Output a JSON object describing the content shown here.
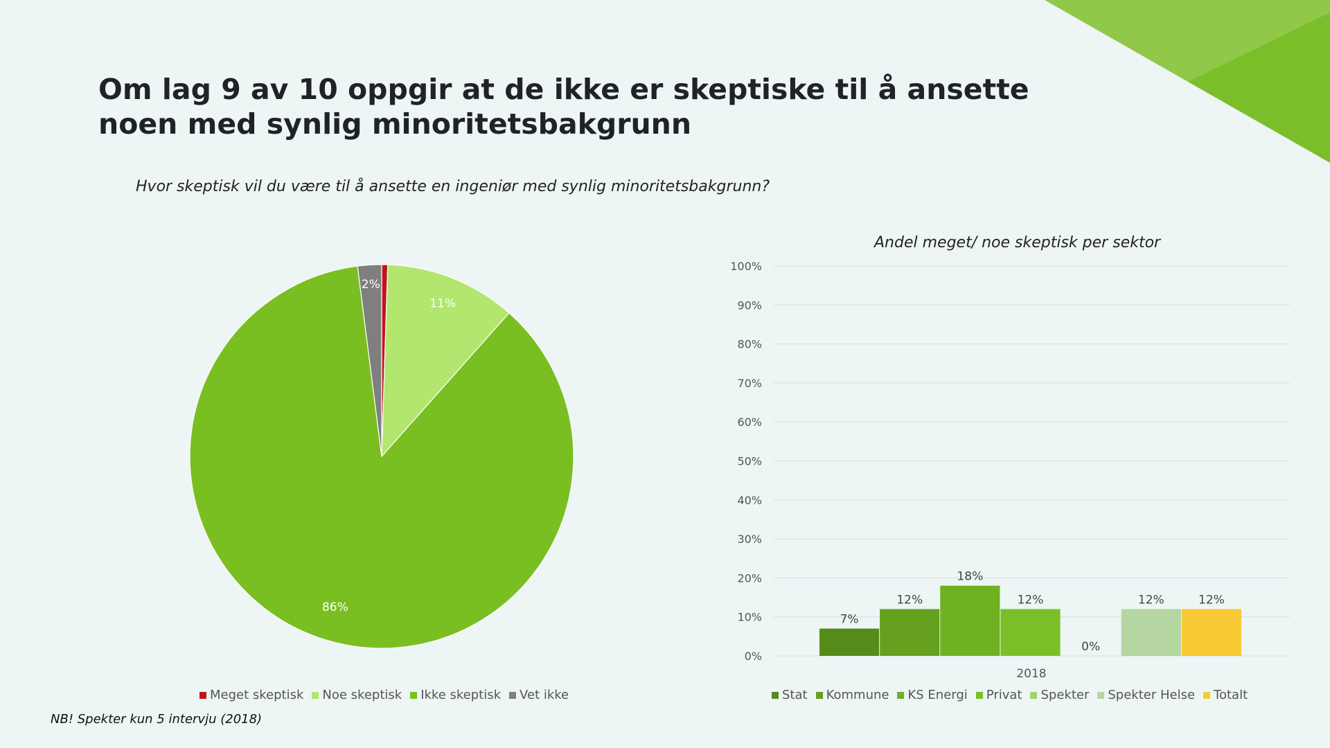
{
  "title": "Om lag 9 av 10 oppgir at de ikke er skeptiske til å ansette noen med synlig minoritetsbakgrunn",
  "question": "Hvor skeptisk vil du være til å ansette en ingeniør med synlig minoritetsbakgrunn?",
  "footnote": "NB! Spekter kun 5 intervju (2018)",
  "decor_colors": [
    "#92c84a",
    "#7abf2a"
  ],
  "chart_data": [
    {
      "type": "pie",
      "title": "",
      "slices": [
        {
          "name": "Meget skeptisk",
          "value": 0.5,
          "label": "",
          "color": "#c0141c"
        },
        {
          "name": "Noe skeptisk",
          "value": 11,
          "label": "11%",
          "color": "#b2e66f"
        },
        {
          "name": "Ikke skeptisk",
          "value": 86,
          "label": "86%",
          "color": "#7abf22"
        },
        {
          "name": "Vet ikke",
          "value": 2,
          "label": "2%",
          "color": "#7f7f7f"
        }
      ],
      "legend_position": "bottom"
    },
    {
      "type": "bar",
      "title": "Andel meget/ noe skeptisk per sektor",
      "categories": [
        "2018"
      ],
      "series": [
        {
          "name": "Stat",
          "values": [
            7
          ],
          "label": "7%",
          "color": "#568b19"
        },
        {
          "name": "Kommune",
          "values": [
            12
          ],
          "label": "12%",
          "color": "#66a01f"
        },
        {
          "name": "KS Energi",
          "values": [
            18
          ],
          "label": "18%",
          "color": "#6eb122"
        },
        {
          "name": "Privat",
          "values": [
            12
          ],
          "label": "12%",
          "color": "#7abf28"
        },
        {
          "name": "Spekter",
          "values": [
            0
          ],
          "label": "0%",
          "color": "#9fd470"
        },
        {
          "name": "Spekter Helse",
          "values": [
            12
          ],
          "label": "12%",
          "color": "#b6d6a1"
        },
        {
          "name": "Totalt",
          "values": [
            12
          ],
          "label": "12%",
          "color": "#f7c934"
        }
      ],
      "ylim": [
        0,
        100
      ],
      "yticks": [
        "0%",
        "10%",
        "20%",
        "30%",
        "40%",
        "50%",
        "60%",
        "70%",
        "80%",
        "90%",
        "100%"
      ],
      "grid": true,
      "legend_position": "bottom"
    }
  ]
}
